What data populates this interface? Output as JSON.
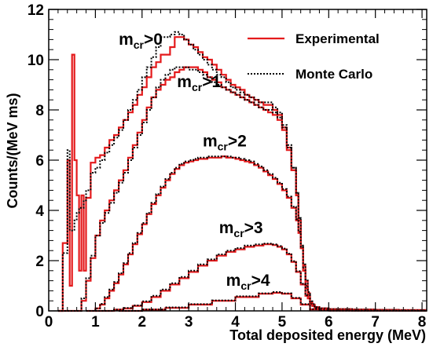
{
  "chart_data": {
    "type": "line",
    "style": "step histogram",
    "xlabel": "Total deposited energy (MeV)",
    "ylabel": "Counts/(MeV ms)",
    "xlim": [
      0,
      8.1
    ],
    "ylim": [
      0,
      12
    ],
    "x_ticks": [
      0,
      1,
      2,
      3,
      4,
      5,
      6,
      7,
      8
    ],
    "y_ticks": [
      0,
      2,
      4,
      6,
      8,
      10,
      12
    ],
    "legend": {
      "position": "top-right",
      "entries": [
        {
          "label": "Experimental",
          "color": "#e41a1c",
          "dash": "solid"
        },
        {
          "label": "Monte Carlo",
          "color": "#000000",
          "dash": "dotted"
        }
      ]
    },
    "groups": [
      {
        "label_main": "m",
        "label_sub": "cr",
        "label_tail": ">0",
        "anchor": [
          1.5,
          10.6
        ],
        "experimental": {
          "x": [
            0.2,
            0.3,
            0.4,
            0.45,
            0.5,
            0.55,
            0.6,
            0.65,
            0.7,
            0.75,
            0.8,
            0.9,
            1.0,
            1.1,
            1.2,
            1.3,
            1.4,
            1.5,
            1.6,
            1.7,
            1.8,
            1.9,
            2.0,
            2.1,
            2.2,
            2.3,
            2.4,
            2.5,
            2.6,
            2.7,
            2.8,
            2.9,
            3.0,
            3.1,
            3.2,
            3.3,
            3.4,
            3.5,
            3.6,
            3.7,
            3.8,
            3.9,
            4.0,
            4.1,
            4.2,
            4.3,
            4.4,
            4.5,
            4.6,
            4.7,
            4.8,
            4.9,
            5.0,
            5.1,
            5.2,
            5.3,
            5.35,
            5.4,
            5.45,
            5.5,
            5.55,
            5.6,
            5.65,
            5.7,
            5.8,
            6.0,
            6.5,
            7.0,
            7.5,
            8.0
          ],
          "y": [
            0.0,
            2.7,
            6.0,
            1.0,
            10.2,
            6.0,
            4.6,
            1.6,
            4.6,
            1.6,
            4.5,
            5.9,
            6.1,
            6.2,
            6.5,
            6.8,
            7.0,
            7.3,
            7.6,
            7.9,
            8.2,
            8.6,
            8.9,
            9.3,
            9.7,
            9.9,
            10.2,
            10.2,
            10.5,
            10.9,
            10.9,
            10.8,
            10.6,
            10.5,
            10.3,
            10.1,
            10.0,
            9.8,
            9.6,
            9.4,
            9.2,
            9.0,
            8.9,
            8.8,
            8.6,
            8.5,
            8.4,
            8.3,
            8.2,
            8.2,
            8.0,
            7.8,
            7.3,
            6.5,
            5.6,
            4.6,
            3.6,
            2.5,
            1.6,
            0.9,
            0.5,
            0.3,
            0.2,
            0.15,
            0.1,
            0.07,
            0.05,
            0.04,
            0.03,
            0.03
          ]
        },
        "monte_carlo": {
          "x": [
            0.2,
            0.3,
            0.4,
            0.45,
            0.5,
            0.55,
            0.6,
            0.65,
            0.7,
            0.75,
            0.8,
            0.9,
            1.0,
            1.1,
            1.2,
            1.3,
            1.4,
            1.5,
            1.6,
            1.7,
            1.8,
            1.9,
            2.0,
            2.1,
            2.2,
            2.3,
            2.4,
            2.5,
            2.6,
            2.7,
            2.8,
            2.9,
            3.0,
            3.1,
            3.2,
            3.3,
            3.4,
            3.5,
            3.6,
            3.7,
            3.8,
            3.9,
            4.0,
            4.1,
            4.2,
            4.3,
            4.4,
            4.5,
            4.6,
            4.7,
            4.8,
            4.9,
            5.0,
            5.1,
            5.2,
            5.3,
            5.35,
            5.4,
            5.45,
            5.5,
            5.55,
            5.6,
            5.65,
            5.7,
            5.8,
            6.0,
            6.5,
            7.0,
            7.5,
            8.0
          ],
          "y": [
            0.0,
            2.3,
            6.4,
            3.2,
            3.2,
            3.6,
            3.9,
            4.1,
            4.1,
            4.4,
            4.8,
            5.5,
            5.7,
            6.0,
            6.3,
            6.6,
            6.9,
            7.2,
            7.6,
            8.0,
            8.4,
            8.8,
            9.3,
            9.7,
            10.1,
            10.5,
            10.9,
            10.9,
            11.0,
            11.1,
            11.0,
            10.8,
            10.6,
            10.4,
            10.2,
            10.0,
            9.8,
            9.6,
            9.4,
            9.3,
            9.1,
            8.9,
            8.8,
            8.7,
            8.6,
            8.5,
            8.4,
            8.3,
            8.3,
            8.3,
            8.1,
            7.9,
            7.4,
            6.6,
            5.7,
            4.7,
            3.7,
            2.6,
            1.7,
            1.0,
            0.6,
            0.3,
            0.2,
            0.15,
            0.1,
            0.07,
            0.05,
            0.04,
            0.03,
            0.03
          ]
        }
      },
      {
        "label_main": "m",
        "label_sub": "cr",
        "label_tail": ">1",
        "anchor": [
          2.75,
          8.9
        ],
        "experimental": {
          "x": [
            0.2,
            0.4,
            0.6,
            0.7,
            0.8,
            0.9,
            1.0,
            1.1,
            1.2,
            1.3,
            1.4,
            1.5,
            1.6,
            1.7,
            1.8,
            1.9,
            2.0,
            2.1,
            2.2,
            2.3,
            2.4,
            2.5,
            2.6,
            2.7,
            2.8,
            2.9,
            3.0,
            3.1,
            3.2,
            3.3,
            3.4,
            3.5,
            3.6,
            3.7,
            3.8,
            3.9,
            4.0,
            4.1,
            4.2,
            4.3,
            4.4,
            4.5,
            4.6,
            4.7,
            4.8,
            4.9,
            5.0,
            5.1,
            5.2,
            5.3,
            5.35,
            5.4,
            5.45,
            5.5,
            5.55,
            5.6,
            5.65,
            5.7,
            5.8,
            6.0,
            6.5,
            7.0,
            7.5,
            8.0
          ],
          "y": [
            0.0,
            0.0,
            0.0,
            0.4,
            1.2,
            2.1,
            3.0,
            3.6,
            4.0,
            4.4,
            4.8,
            5.2,
            5.6,
            6.1,
            6.6,
            7.1,
            7.6,
            8.1,
            8.5,
            8.8,
            9.0,
            9.2,
            9.3,
            9.5,
            9.6,
            9.7,
            9.7,
            9.7,
            9.6,
            9.5,
            9.3,
            9.2,
            9.1,
            8.9,
            8.8,
            8.7,
            8.6,
            8.5,
            8.4,
            8.3,
            8.2,
            8.1,
            8.0,
            7.9,
            7.8,
            7.6,
            7.2,
            6.4,
            5.6,
            4.6,
            3.6,
            2.5,
            1.6,
            0.9,
            0.5,
            0.3,
            0.2,
            0.15,
            0.1,
            0.07,
            0.05,
            0.04,
            0.03,
            0.03
          ]
        },
        "monte_carlo": {
          "x": [
            0.2,
            0.4,
            0.6,
            0.7,
            0.8,
            0.9,
            1.0,
            1.1,
            1.2,
            1.3,
            1.4,
            1.5,
            1.6,
            1.7,
            1.8,
            1.9,
            2.0,
            2.1,
            2.2,
            2.3,
            2.4,
            2.5,
            2.6,
            2.7,
            2.8,
            2.9,
            3.0,
            3.1,
            3.2,
            3.3,
            3.4,
            3.5,
            3.6,
            3.7,
            3.8,
            3.9,
            4.0,
            4.1,
            4.2,
            4.3,
            4.4,
            4.5,
            4.6,
            4.7,
            4.8,
            4.9,
            5.0,
            5.1,
            5.2,
            5.3,
            5.35,
            5.4,
            5.45,
            5.5,
            5.55,
            5.6,
            5.65,
            5.7,
            5.8,
            6.0,
            6.5,
            7.0,
            7.5,
            8.0
          ],
          "y": [
            0.0,
            0.0,
            0.0,
            0.5,
            1.3,
            2.2,
            3.0,
            3.5,
            3.9,
            4.3,
            4.7,
            5.1,
            5.5,
            6.0,
            6.5,
            7.0,
            7.5,
            8.0,
            8.5,
            8.9,
            9.2,
            9.4,
            9.6,
            9.7,
            9.7,
            9.7,
            9.6,
            9.6,
            9.5,
            9.4,
            9.3,
            9.1,
            9.0,
            8.9,
            8.8,
            8.7,
            8.6,
            8.5,
            8.4,
            8.3,
            8.2,
            8.1,
            8.0,
            8.0,
            7.9,
            7.7,
            7.3,
            6.5,
            5.7,
            4.7,
            3.7,
            2.6,
            1.7,
            1.0,
            0.6,
            0.3,
            0.2,
            0.15,
            0.1,
            0.07,
            0.05,
            0.04,
            0.03,
            0.03
          ]
        }
      },
      {
        "label_main": "m",
        "label_sub": "cr",
        "label_tail": ">2",
        "anchor": [
          3.3,
          6.55
        ],
        "experimental": {
          "x": [
            0.8,
            1.0,
            1.1,
            1.2,
            1.3,
            1.4,
            1.5,
            1.6,
            1.7,
            1.8,
            1.9,
            2.0,
            2.1,
            2.2,
            2.3,
            2.4,
            2.5,
            2.6,
            2.7,
            2.8,
            2.9,
            3.0,
            3.1,
            3.2,
            3.3,
            3.4,
            3.5,
            3.6,
            3.7,
            3.8,
            3.9,
            4.0,
            4.1,
            4.2,
            4.3,
            4.4,
            4.5,
            4.6,
            4.7,
            4.8,
            4.9,
            5.0,
            5.1,
            5.2,
            5.3,
            5.35,
            5.4,
            5.45,
            5.5,
            5.55,
            5.6,
            5.65,
            5.7,
            5.8,
            6.0,
            6.5,
            7.0,
            7.5,
            8.0
          ],
          "y": [
            0.0,
            0.1,
            0.25,
            0.5,
            0.8,
            1.1,
            1.45,
            1.85,
            2.25,
            2.65,
            3.05,
            3.45,
            3.85,
            4.25,
            4.6,
            4.9,
            5.2,
            5.45,
            5.65,
            5.8,
            5.9,
            5.95,
            6.0,
            6.05,
            6.05,
            6.1,
            6.1,
            6.1,
            6.15,
            6.1,
            6.1,
            6.05,
            6.0,
            5.95,
            5.9,
            5.8,
            5.7,
            5.55,
            5.4,
            5.25,
            5.05,
            4.8,
            4.5,
            4.1,
            3.6,
            3.1,
            2.5,
            1.8,
            1.2,
            0.7,
            0.35,
            0.2,
            0.1,
            0.05,
            0.03,
            0.02,
            0.02,
            0.01,
            0.01
          ]
        },
        "monte_carlo": {
          "x": [
            0.8,
            1.0,
            1.1,
            1.2,
            1.3,
            1.4,
            1.5,
            1.6,
            1.7,
            1.8,
            1.9,
            2.0,
            2.1,
            2.2,
            2.3,
            2.4,
            2.5,
            2.6,
            2.7,
            2.8,
            2.9,
            3.0,
            3.1,
            3.2,
            3.3,
            3.4,
            3.5,
            3.6,
            3.7,
            3.8,
            3.9,
            4.0,
            4.1,
            4.2,
            4.3,
            4.4,
            4.5,
            4.6,
            4.7,
            4.8,
            4.9,
            5.0,
            5.1,
            5.2,
            5.3,
            5.35,
            5.4,
            5.45,
            5.5,
            5.55,
            5.6,
            5.65,
            5.7,
            5.8,
            6.0,
            6.5,
            7.0,
            7.5,
            8.0
          ],
          "y": [
            0.0,
            0.1,
            0.28,
            0.55,
            0.85,
            1.15,
            1.5,
            1.9,
            2.3,
            2.7,
            3.1,
            3.5,
            3.9,
            4.3,
            4.65,
            4.95,
            5.25,
            5.5,
            5.7,
            5.85,
            5.95,
            6.0,
            6.05,
            6.1,
            6.1,
            6.15,
            6.15,
            6.15,
            6.15,
            6.15,
            6.1,
            6.1,
            6.05,
            6.0,
            5.95,
            5.85,
            5.75,
            5.6,
            5.45,
            5.3,
            5.1,
            4.85,
            4.55,
            4.15,
            3.65,
            3.15,
            2.55,
            1.85,
            1.25,
            0.75,
            0.38,
            0.22,
            0.11,
            0.05,
            0.03,
            0.02,
            0.02,
            0.01,
            0.01
          ]
        }
      },
      {
        "label_main": "m",
        "label_sub": "cr",
        "label_tail": ">3",
        "anchor": [
          3.65,
          3.1
        ],
        "experimental": {
          "x": [
            1.0,
            1.4,
            1.6,
            1.8,
            2.0,
            2.2,
            2.4,
            2.6,
            2.8,
            3.0,
            3.2,
            3.4,
            3.6,
            3.8,
            4.0,
            4.2,
            4.4,
            4.6,
            4.8,
            4.9,
            5.0,
            5.1,
            5.2,
            5.3,
            5.4,
            5.5,
            5.6,
            5.7,
            5.8,
            6.0,
            6.5,
            7.0,
            7.5,
            8.0
          ],
          "y": [
            0.0,
            0.05,
            0.1,
            0.2,
            0.35,
            0.55,
            0.8,
            1.05,
            1.3,
            1.55,
            1.8,
            2.0,
            2.2,
            2.35,
            2.45,
            2.55,
            2.6,
            2.65,
            2.62,
            2.55,
            2.45,
            2.25,
            1.95,
            1.55,
            1.05,
            0.6,
            0.25,
            0.1,
            0.05,
            0.02,
            0.01,
            0.01,
            0.01,
            0.01
          ]
        },
        "monte_carlo": {
          "x": [
            1.0,
            1.4,
            1.6,
            1.8,
            2.0,
            2.2,
            2.4,
            2.6,
            2.8,
            3.0,
            3.2,
            3.4,
            3.6,
            3.8,
            4.0,
            4.2,
            4.4,
            4.6,
            4.8,
            4.9,
            5.0,
            5.1,
            5.2,
            5.3,
            5.4,
            5.5,
            5.6,
            5.7,
            5.8,
            6.0,
            6.5,
            7.0,
            7.5,
            8.0
          ],
          "y": [
            0.0,
            0.05,
            0.12,
            0.22,
            0.38,
            0.6,
            0.85,
            1.1,
            1.35,
            1.6,
            1.85,
            2.05,
            2.25,
            2.4,
            2.5,
            2.6,
            2.65,
            2.68,
            2.65,
            2.58,
            2.48,
            2.28,
            1.98,
            1.58,
            1.08,
            0.62,
            0.27,
            0.11,
            0.05,
            0.02,
            0.01,
            0.01,
            0.01,
            0.01
          ]
        }
      },
      {
        "label_main": "m",
        "label_sub": "cr",
        "label_tail": ">4",
        "anchor": [
          3.8,
          1.0
        ],
        "experimental": {
          "x": [
            1.5,
            2.0,
            2.5,
            3.0,
            3.5,
            4.0,
            4.5,
            4.8,
            5.0,
            5.2,
            5.4,
            5.6,
            5.8,
            6.0,
            7.0,
            8.0
          ],
          "y": [
            0.0,
            0.05,
            0.12,
            0.25,
            0.4,
            0.55,
            0.68,
            0.72,
            0.68,
            0.5,
            0.25,
            0.06,
            0.02,
            0.01,
            0.01,
            0.01
          ]
        },
        "monte_carlo": {
          "x": [
            1.5,
            2.0,
            2.5,
            3.0,
            3.5,
            4.0,
            4.5,
            4.8,
            5.0,
            5.2,
            5.4,
            5.6,
            5.8,
            6.0,
            7.0,
            8.0
          ],
          "y": [
            0.0,
            0.06,
            0.14,
            0.27,
            0.42,
            0.58,
            0.7,
            0.75,
            0.7,
            0.52,
            0.27,
            0.07,
            0.02,
            0.01,
            0.01,
            0.01
          ]
        }
      }
    ]
  }
}
